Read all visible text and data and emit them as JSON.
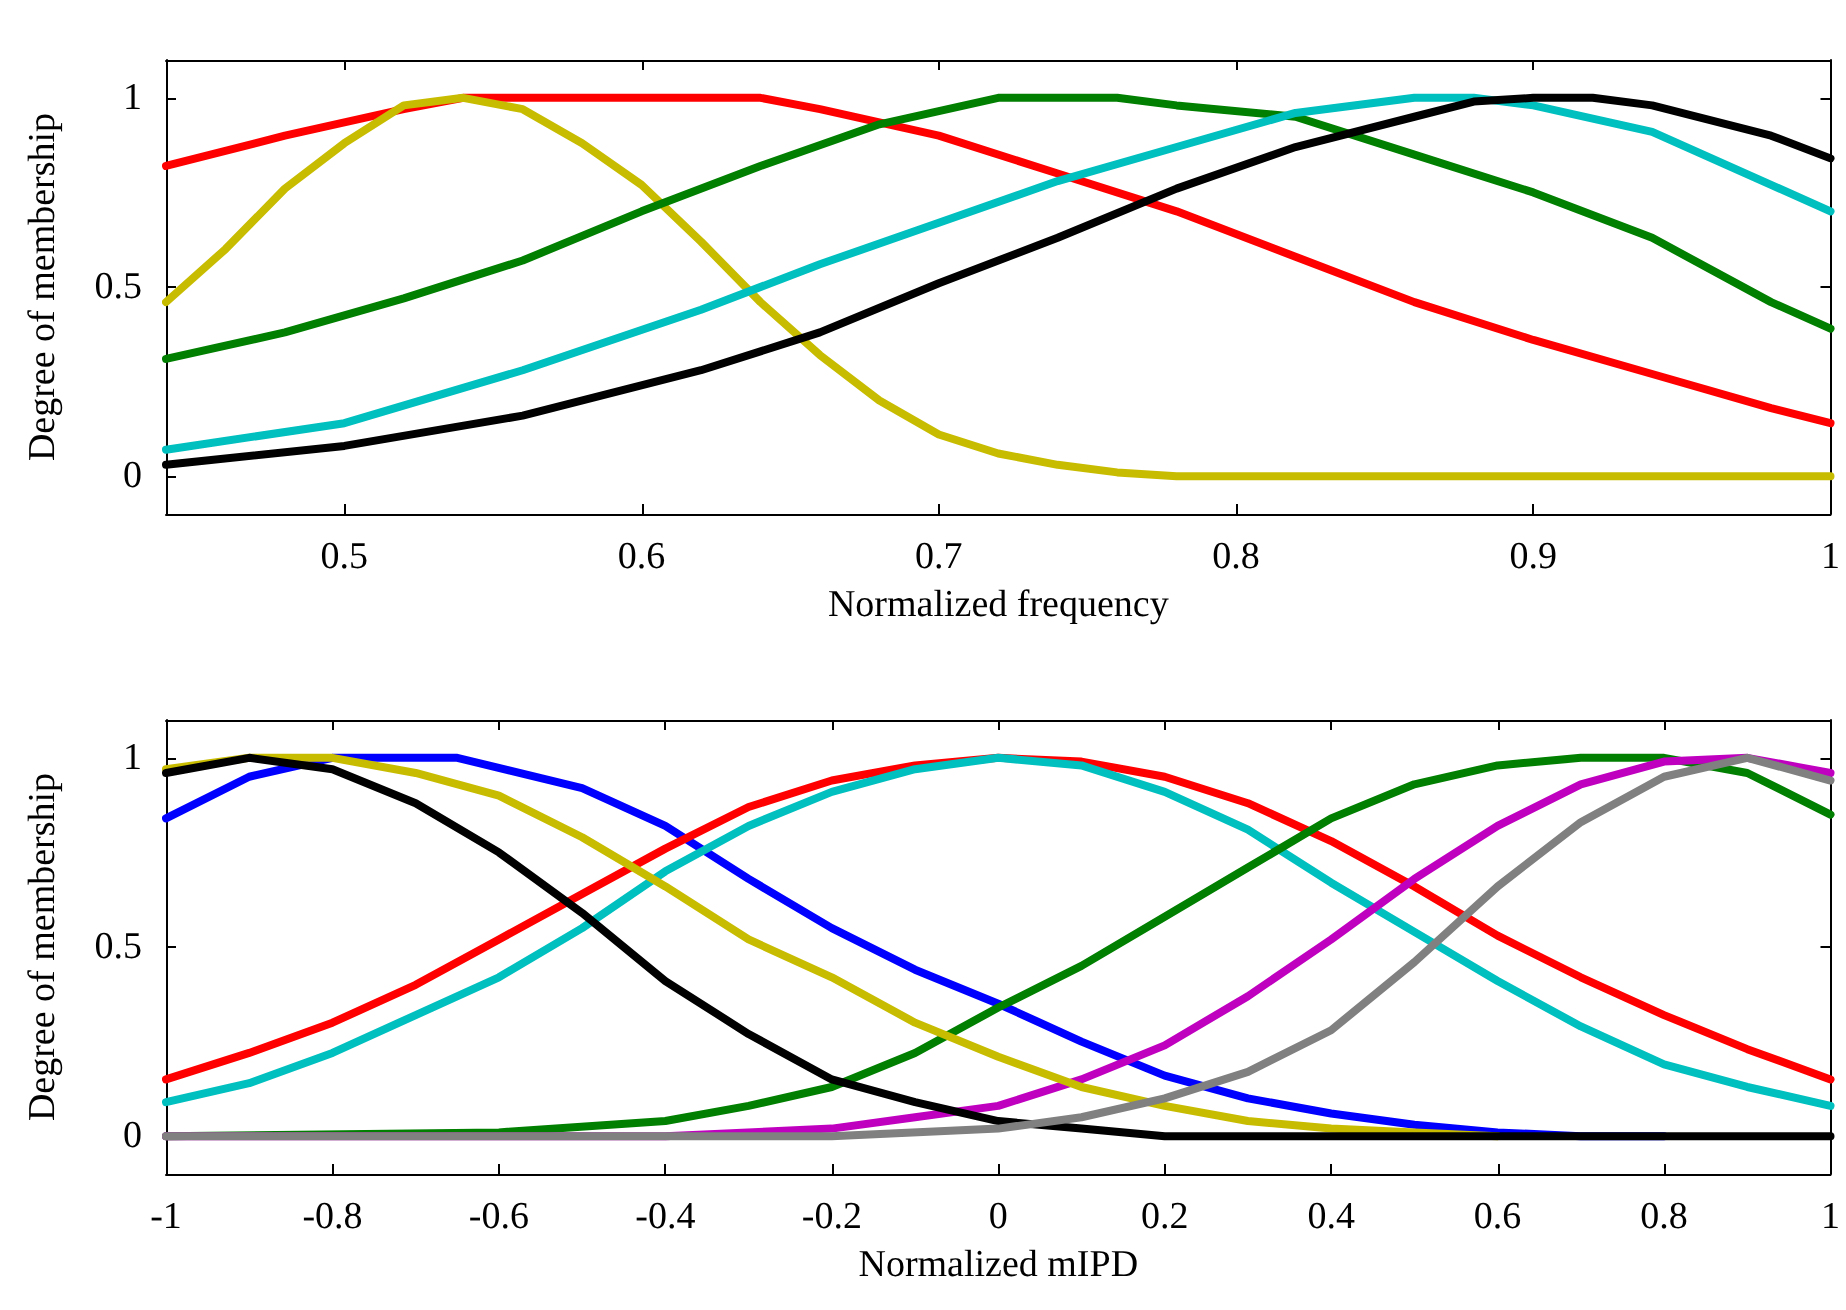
{
  "chart_data": [
    {
      "type": "line",
      "xlabel": "Normalized frequency",
      "ylabel": "Degree of membership",
      "xlim": [
        0.44,
        1
      ],
      "xticks": [
        0.5,
        0.6,
        0.7,
        0.8,
        0.9,
        1
      ],
      "ylim": [
        -0.1,
        1.1
      ],
      "yticks": [
        0,
        0.5,
        1
      ],
      "grid": false,
      "marker": "none",
      "line_style": "solid",
      "series": [
        {
          "color": "#ff0000",
          "x": [
            0.44,
            0.48,
            0.52,
            0.54,
            0.6,
            0.64,
            0.66,
            0.7,
            0.74,
            0.78,
            0.82,
            0.86,
            0.9,
            0.94,
            0.98,
            1
          ],
          "values": [
            0.82,
            0.9,
            0.97,
            1,
            1,
            1,
            0.97,
            0.9,
            0.8,
            0.7,
            0.58,
            0.46,
            0.36,
            0.27,
            0.18,
            0.14
          ]
        },
        {
          "color": "#c8bc00",
          "x": [
            0.44,
            0.46,
            0.48,
            0.5,
            0.52,
            0.54,
            0.56,
            0.58,
            0.6,
            0.62,
            0.64,
            0.66,
            0.68,
            0.7,
            0.72,
            0.74,
            0.76,
            0.78,
            1
          ],
          "values": [
            0.46,
            0.6,
            0.76,
            0.88,
            0.98,
            1,
            0.97,
            0.88,
            0.77,
            0.62,
            0.46,
            0.32,
            0.2,
            0.11,
            0.06,
            0.03,
            0.01,
            0,
            0
          ]
        },
        {
          "color": "#007f00",
          "x": [
            0.44,
            0.48,
            0.52,
            0.56,
            0.6,
            0.64,
            0.68,
            0.72,
            0.76,
            0.78,
            0.82,
            0.86,
            0.9,
            0.94,
            0.98,
            1
          ],
          "values": [
            0.31,
            0.38,
            0.47,
            0.57,
            0.7,
            0.82,
            0.93,
            1,
            1,
            0.98,
            0.95,
            0.85,
            0.75,
            0.63,
            0.46,
            0.39
          ]
        },
        {
          "color": "#00bfbf",
          "x": [
            0.44,
            0.5,
            0.56,
            0.62,
            0.66,
            0.7,
            0.74,
            0.78,
            0.82,
            0.86,
            0.88,
            0.9,
            0.94,
            0.98,
            1
          ],
          "values": [
            0.07,
            0.14,
            0.28,
            0.44,
            0.56,
            0.67,
            0.78,
            0.87,
            0.96,
            1,
            1,
            0.98,
            0.91,
            0.77,
            0.7
          ]
        },
        {
          "color": "#000000",
          "x": [
            0.44,
            0.5,
            0.56,
            0.62,
            0.66,
            0.7,
            0.74,
            0.78,
            0.82,
            0.86,
            0.88,
            0.9,
            0.92,
            0.94,
            0.98,
            1
          ],
          "values": [
            0.03,
            0.08,
            0.16,
            0.28,
            0.38,
            0.51,
            0.63,
            0.76,
            0.87,
            0.95,
            0.99,
            1,
            1,
            0.98,
            0.9,
            0.84
          ]
        }
      ]
    },
    {
      "type": "line",
      "xlabel": "Normalized mIPD",
      "ylabel": "Degree of membership",
      "xlim": [
        -1,
        1
      ],
      "xticks": [
        -1,
        -0.8,
        -0.6,
        -0.4,
        -0.2,
        0,
        0.2,
        0.4,
        0.6,
        0.8,
        1
      ],
      "ylim": [
        -0.1,
        1.1
      ],
      "yticks": [
        0,
        0.5,
        1
      ],
      "grid": false,
      "marker": "none",
      "line_style": "solid",
      "series": [
        {
          "color": "#0000ff",
          "x": [
            -1,
            -0.9,
            -0.8,
            -0.65,
            -0.5,
            -0.4,
            -0.3,
            -0.2,
            -0.1,
            0,
            0.1,
            0.2,
            0.3,
            0.4,
            0.5,
            0.6,
            0.7,
            0.8
          ],
          "values": [
            0.84,
            0.95,
            1,
            1,
            0.92,
            0.82,
            0.68,
            0.55,
            0.44,
            0.35,
            0.25,
            0.16,
            0.1,
            0.06,
            0.03,
            0.01,
            0,
            0
          ]
        },
        {
          "color": "#ff0000",
          "x": [
            -1,
            -0.9,
            -0.8,
            -0.7,
            -0.6,
            -0.5,
            -0.4,
            -0.3,
            -0.2,
            -0.1,
            0,
            0.1,
            0.2,
            0.3,
            0.4,
            0.5,
            0.6,
            0.7,
            0.8,
            0.9,
            1
          ],
          "values": [
            0.15,
            0.22,
            0.3,
            0.4,
            0.52,
            0.64,
            0.76,
            0.87,
            0.94,
            0.98,
            1,
            0.99,
            0.95,
            0.88,
            0.78,
            0.66,
            0.53,
            0.42,
            0.32,
            0.23,
            0.15
          ]
        },
        {
          "color": "#00bfbf",
          "x": [
            -1,
            -0.9,
            -0.8,
            -0.7,
            -0.6,
            -0.5,
            -0.4,
            -0.3,
            -0.2,
            -0.1,
            0,
            0.1,
            0.2,
            0.3,
            0.4,
            0.5,
            0.6,
            0.7,
            0.8,
            0.9,
            1
          ],
          "values": [
            0.09,
            0.14,
            0.22,
            0.32,
            0.42,
            0.55,
            0.7,
            0.82,
            0.91,
            0.97,
            1,
            0.98,
            0.91,
            0.81,
            0.67,
            0.54,
            0.41,
            0.29,
            0.19,
            0.13,
            0.08
          ]
        },
        {
          "color": "#007f00",
          "x": [
            -1,
            -0.6,
            -0.4,
            -0.3,
            -0.2,
            -0.1,
            0,
            0.1,
            0.2,
            0.3,
            0.4,
            0.5,
            0.6,
            0.7,
            0.8,
            0.9,
            1
          ],
          "values": [
            0,
            0.01,
            0.04,
            0.08,
            0.13,
            0.22,
            0.34,
            0.45,
            0.58,
            0.71,
            0.84,
            0.93,
            0.98,
            1,
            1,
            0.96,
            0.85
          ]
        },
        {
          "color": "#bf00bf",
          "x": [
            -1,
            -0.4,
            -0.2,
            -0.1,
            0,
            0.1,
            0.2,
            0.3,
            0.4,
            0.5,
            0.6,
            0.7,
            0.8,
            0.9,
            1
          ],
          "values": [
            0,
            0,
            0.02,
            0.05,
            0.08,
            0.15,
            0.24,
            0.37,
            0.52,
            0.68,
            0.82,
            0.93,
            0.99,
            1,
            0.96
          ]
        },
        {
          "color": "#c8bc00",
          "x": [
            -1,
            -0.9,
            -0.8,
            -0.7,
            -0.6,
            -0.5,
            -0.4,
            -0.3,
            -0.2,
            -0.1,
            0,
            0.1,
            0.2,
            0.3,
            0.4,
            0.5,
            0.6
          ],
          "values": [
            0.97,
            1,
            1,
            0.96,
            0.9,
            0.79,
            0.66,
            0.52,
            0.42,
            0.3,
            0.21,
            0.13,
            0.08,
            0.04,
            0.02,
            0.01,
            0
          ]
        },
        {
          "color": "#000000",
          "x": [
            -1,
            -0.9,
            -0.8,
            -0.7,
            -0.6,
            -0.5,
            -0.4,
            -0.3,
            -0.2,
            -0.1,
            0,
            0.1,
            0.2,
            1
          ],
          "values": [
            0.96,
            1,
            0.97,
            0.88,
            0.75,
            0.59,
            0.41,
            0.27,
            0.15,
            0.09,
            0.04,
            0.02,
            0,
            0
          ]
        },
        {
          "color": "#808080",
          "x": [
            -1,
            -0.2,
            0,
            0.1,
            0.2,
            0.3,
            0.4,
            0.5,
            0.6,
            0.7,
            0.8,
            0.9,
            1
          ],
          "values": [
            0,
            0,
            0.02,
            0.05,
            0.1,
            0.17,
            0.28,
            0.46,
            0.66,
            0.83,
            0.95,
            1,
            0.94
          ]
        }
      ]
    }
  ]
}
